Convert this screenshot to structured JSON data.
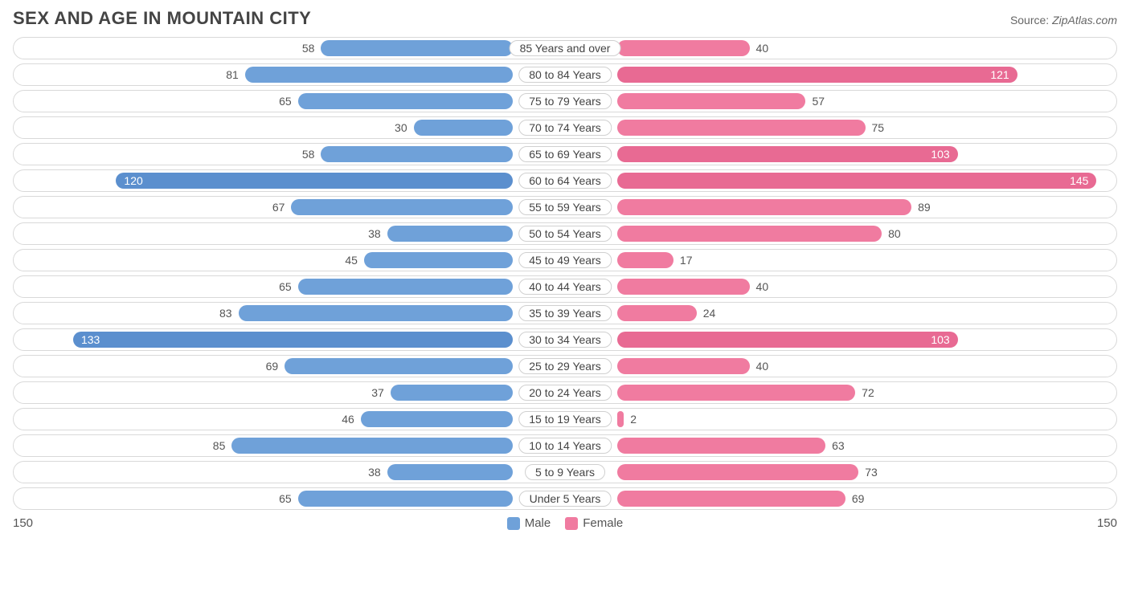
{
  "title": "SEX AND AGE IN MOUNTAIN CITY",
  "source_label": "Source: ",
  "source_value": "ZipAtlas.com",
  "chart": {
    "type": "population-pyramid",
    "max_value": 150,
    "inside_label_threshold": 100,
    "axis_left_label": "150",
    "axis_right_label": "150",
    "colors": {
      "male_fill": "#6fa1d9",
      "male_fill_dark": "#5b8fce",
      "female_fill": "#f07ba0",
      "female_fill_dark": "#e86a93",
      "row_border": "#d9d9d9",
      "text": "#555555",
      "inside_text": "#ffffff",
      "background": "#ffffff"
    },
    "series": [
      {
        "key": "male",
        "label": "Male",
        "swatch": "#6fa1d9"
      },
      {
        "key": "female",
        "label": "Female",
        "swatch": "#f07ba0"
      }
    ],
    "rows": [
      {
        "label": "85 Years and over",
        "male": 58,
        "female": 40
      },
      {
        "label": "80 to 84 Years",
        "male": 81,
        "female": 121
      },
      {
        "label": "75 to 79 Years",
        "male": 65,
        "female": 57
      },
      {
        "label": "70 to 74 Years",
        "male": 30,
        "female": 75
      },
      {
        "label": "65 to 69 Years",
        "male": 58,
        "female": 103
      },
      {
        "label": "60 to 64 Years",
        "male": 120,
        "female": 145
      },
      {
        "label": "55 to 59 Years",
        "male": 67,
        "female": 89
      },
      {
        "label": "50 to 54 Years",
        "male": 38,
        "female": 80
      },
      {
        "label": "45 to 49 Years",
        "male": 45,
        "female": 17
      },
      {
        "label": "40 to 44 Years",
        "male": 65,
        "female": 40
      },
      {
        "label": "35 to 39 Years",
        "male": 83,
        "female": 24
      },
      {
        "label": "30 to 34 Years",
        "male": 133,
        "female": 103
      },
      {
        "label": "25 to 29 Years",
        "male": 69,
        "female": 40
      },
      {
        "label": "20 to 24 Years",
        "male": 37,
        "female": 72
      },
      {
        "label": "15 to 19 Years",
        "male": 46,
        "female": 2
      },
      {
        "label": "10 to 14 Years",
        "male": 85,
        "female": 63
      },
      {
        "label": "5 to 9 Years",
        "male": 38,
        "female": 73
      },
      {
        "label": "Under 5 Years",
        "male": 65,
        "female": 69
      }
    ]
  }
}
